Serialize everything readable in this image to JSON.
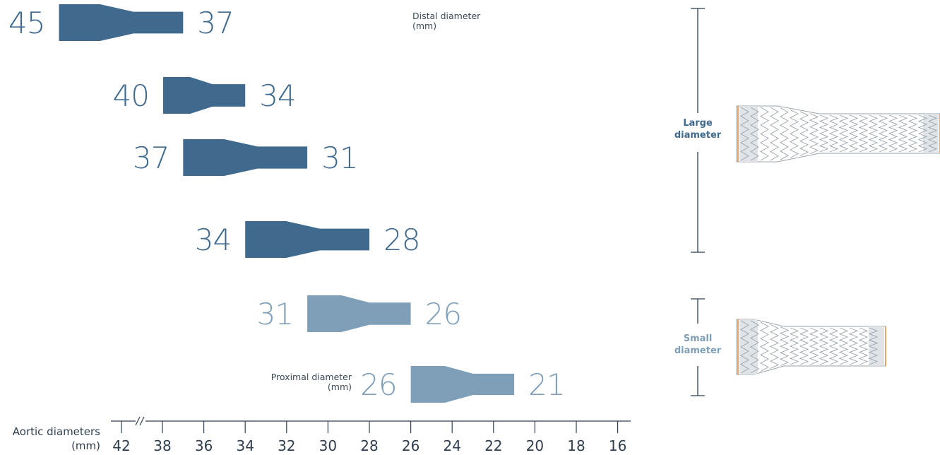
{
  "colors": {
    "large": "#3f6a8e",
    "small": "#7f9fb8",
    "axis": "#2f3e4e",
    "stent_line": "#9aa3ab",
    "stent_marker": "#e8a46a",
    "stent_fill": "#dde1e5"
  },
  "annotations": {
    "distal_label": [
      "Distal diameter",
      "(mm)"
    ],
    "proximal_label": [
      "Proximal diameter",
      "(mm)"
    ]
  },
  "axis": {
    "title": [
      "Aortic diameters",
      "(mm)"
    ],
    "ticks": [
      42,
      38,
      36,
      34,
      32,
      30,
      28,
      26,
      24,
      22,
      20,
      18,
      16
    ],
    "break_marker": "axis-break"
  },
  "brackets": [
    {
      "label": [
        "Large",
        "diameter"
      ],
      "group": "large"
    },
    {
      "label": [
        "Small",
        "diameter"
      ],
      "group": "small"
    }
  ],
  "devices": [
    {
      "proximal": 45,
      "distal": 37,
      "group": "large"
    },
    {
      "proximal": 40,
      "distal": 34,
      "group": "large"
    },
    {
      "proximal": 37,
      "distal": 31,
      "group": "large"
    },
    {
      "proximal": 34,
      "distal": 28,
      "group": "large"
    },
    {
      "proximal": 31,
      "distal": 26,
      "group": "small"
    },
    {
      "proximal": 26,
      "distal": 21,
      "group": "small"
    }
  ],
  "stents": [
    {
      "group": "large",
      "icon": "large-stent-graft-icon"
    },
    {
      "group": "small",
      "icon": "small-stent-graft-icon"
    }
  ]
}
